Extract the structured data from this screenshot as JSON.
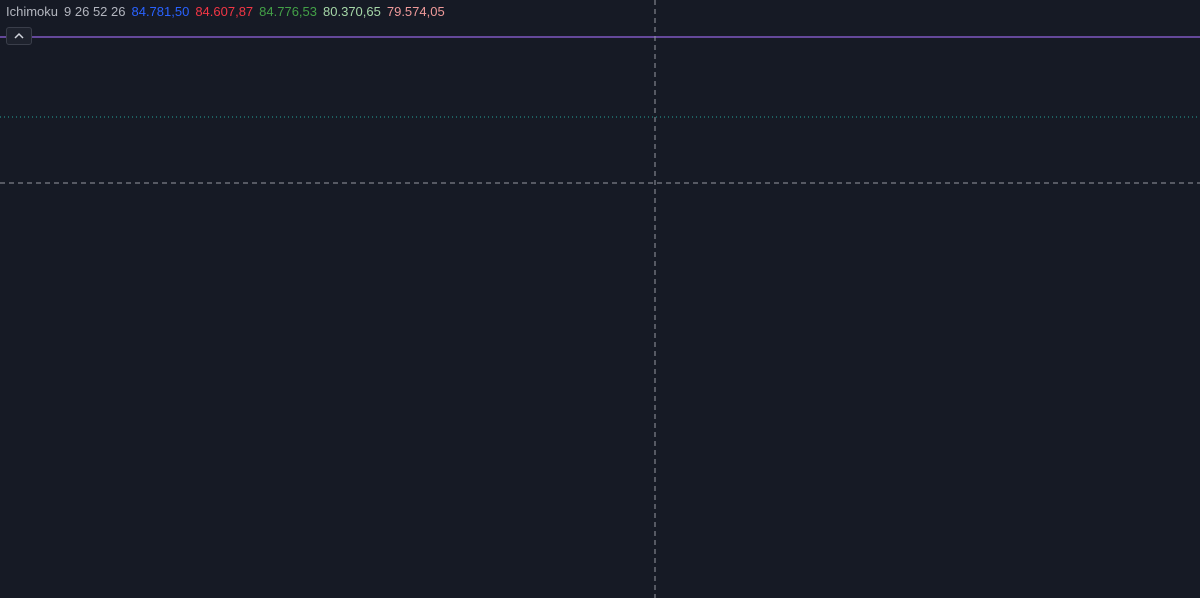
{
  "indicator": {
    "name": "Ichimoku",
    "params": "9 26 52 26",
    "values": [
      {
        "text": "84.781,50",
        "color": "#2962ff"
      },
      {
        "text": "84.607,87",
        "color": "#f23645"
      },
      {
        "text": "84.776,53",
        "color": "#43a047"
      },
      {
        "text": "80.370,65",
        "color": "#a5d6a7"
      },
      {
        "text": "79.574,05",
        "color": "#ef9a9a"
      }
    ]
  }
}
